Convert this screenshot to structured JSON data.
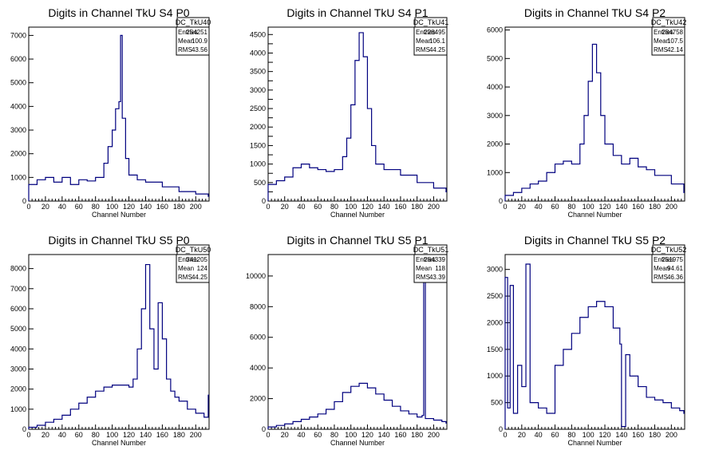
{
  "colors": {
    "histogram": "#00007f",
    "frame": "#000000",
    "background": "#ffffff"
  },
  "chart_data": [
    {
      "type": "histogram",
      "title": "Digits in Channel TkU S4 P0",
      "xlabel": "Channel Number",
      "ylabel": "",
      "xlim": [
        0,
        216
      ],
      "ylim": [
        0,
        7350
      ],
      "xticks": [
        0,
        20,
        40,
        60,
        80,
        100,
        120,
        140,
        160,
        180,
        200
      ],
      "yticks": [
        1000,
        2000,
        3000,
        4000,
        5000,
        6000,
        7000
      ],
      "stats": {
        "name": "DC_TkU40",
        "rows": [
          [
            "Entries",
            "254251"
          ],
          [
            "Mean",
            "100.9"
          ],
          [
            "RMS",
            "43.56"
          ]
        ]
      },
      "x": [
        0,
        10,
        20,
        30,
        40,
        50,
        60,
        70,
        80,
        90,
        95,
        100,
        104,
        108,
        110,
        112,
        116,
        120,
        130,
        140,
        160,
        180,
        200,
        215
      ],
      "values": [
        700,
        900,
        1000,
        800,
        1000,
        700,
        900,
        850,
        1000,
        1600,
        2300,
        3000,
        3900,
        4200,
        7000,
        3500,
        1800,
        1100,
        900,
        800,
        600,
        400,
        300,
        200
      ]
    },
    {
      "type": "histogram",
      "title": "Digits in Channel TkU S4 P1",
      "xlabel": "Channel Number",
      "ylabel": "",
      "xlim": [
        0,
        216
      ],
      "ylim": [
        0,
        4700
      ],
      "xticks": [
        0,
        20,
        40,
        60,
        80,
        100,
        120,
        140,
        160,
        180,
        200
      ],
      "yticks": [
        250,
        500,
        750,
        1000,
        1250,
        1500,
        1750,
        2000,
        2250,
        2500,
        2750,
        3000,
        3250,
        3500,
        3750,
        4000,
        4250,
        4500
      ],
      "ytick_labels": [
        "",
        "500",
        "",
        "1000",
        "",
        "1500",
        "",
        "2000",
        "",
        "2500",
        "",
        "3000",
        "",
        "3500",
        "",
        "4000",
        "",
        "4500"
      ],
      "stats": {
        "name": "DC_TkU41",
        "rows": [
          [
            "Entries",
            "228495"
          ],
          [
            "Mean",
            "106.1"
          ],
          [
            "RMS",
            "44.25"
          ]
        ]
      },
      "x": [
        0,
        10,
        20,
        30,
        40,
        50,
        60,
        70,
        80,
        90,
        95,
        100,
        105,
        110,
        115,
        120,
        125,
        130,
        140,
        160,
        180,
        200,
        215
      ],
      "values": [
        450,
        550,
        650,
        900,
        1000,
        900,
        850,
        800,
        850,
        1200,
        1700,
        2600,
        3800,
        4550,
        3900,
        2500,
        1500,
        1000,
        850,
        700,
        500,
        350,
        250
      ]
    },
    {
      "type": "histogram",
      "title": "Digits in Channel TkU S4 P2",
      "xlabel": "Channel Number",
      "ylabel": "",
      "xlim": [
        0,
        216
      ],
      "ylim": [
        0,
        6100
      ],
      "xticks": [
        0,
        20,
        40,
        60,
        80,
        100,
        120,
        140,
        160,
        180,
        200
      ],
      "yticks": [
        1000,
        2000,
        3000,
        4000,
        5000,
        6000
      ],
      "stats": {
        "name": "DC_TkU42",
        "rows": [
          [
            "Entries",
            "284758"
          ],
          [
            "Mean",
            "107.5"
          ],
          [
            "RMS",
            "42.14"
          ]
        ]
      },
      "x": [
        0,
        10,
        20,
        30,
        40,
        50,
        60,
        70,
        80,
        90,
        95,
        100,
        105,
        110,
        115,
        120,
        130,
        140,
        150,
        160,
        170,
        180,
        200,
        215
      ],
      "values": [
        200,
        300,
        450,
        600,
        700,
        1000,
        1300,
        1400,
        1300,
        2000,
        3000,
        4200,
        5500,
        4500,
        3000,
        2000,
        1600,
        1300,
        1500,
        1200,
        1100,
        900,
        600,
        300
      ]
    },
    {
      "type": "histogram",
      "title": "Digits in Channel TkU S5 P0",
      "xlabel": "Channel Number",
      "ylabel": "",
      "xlim": [
        0,
        216
      ],
      "ylim": [
        0,
        8700
      ],
      "xticks": [
        0,
        20,
        40,
        60,
        80,
        100,
        120,
        140,
        160,
        180,
        200
      ],
      "yticks": [
        1000,
        2000,
        3000,
        4000,
        5000,
        6000,
        7000,
        8000
      ],
      "stats": {
        "name": "DC_TkU50",
        "rows": [
          [
            "Entries",
            "341205"
          ],
          [
            "Mean",
            "124"
          ],
          [
            "RMS",
            "44.25"
          ]
        ]
      },
      "x": [
        0,
        10,
        20,
        30,
        40,
        50,
        60,
        70,
        80,
        90,
        100,
        110,
        120,
        125,
        130,
        135,
        140,
        145,
        150,
        155,
        160,
        165,
        170,
        175,
        180,
        190,
        200,
        210,
        215
      ],
      "values": [
        100,
        200,
        350,
        500,
        700,
        1000,
        1300,
        1600,
        1900,
        2100,
        2200,
        2200,
        2100,
        2500,
        4000,
        6000,
        8200,
        5000,
        3000,
        6300,
        4500,
        2500,
        1900,
        1600,
        1400,
        1000,
        800,
        600,
        1700
      ]
    },
    {
      "type": "histogram",
      "title": "Digits in Channel TkU S5 P1",
      "xlabel": "Channel Number",
      "ylabel": "",
      "xlim": [
        0,
        216
      ],
      "ylim": [
        0,
        11400
      ],
      "xticks": [
        0,
        20,
        40,
        60,
        80,
        100,
        120,
        140,
        160,
        180,
        200
      ],
      "yticks": [
        2000,
        4000,
        6000,
        8000,
        10000
      ],
      "stats": {
        "name": "DC_TkU51",
        "rows": [
          [
            "Entries",
            "264339"
          ],
          [
            "Mean",
            "118"
          ],
          [
            "RMS",
            "43.39"
          ]
        ]
      },
      "x": [
        0,
        10,
        20,
        30,
        40,
        50,
        60,
        70,
        80,
        90,
        100,
        110,
        120,
        130,
        140,
        150,
        160,
        170,
        180,
        186,
        188,
        190,
        200,
        210,
        215
      ],
      "values": [
        150,
        250,
        350,
        500,
        650,
        800,
        1000,
        1300,
        1800,
        2400,
        2800,
        3000,
        2700,
        2300,
        1900,
        1500,
        1200,
        1000,
        800,
        900,
        10800,
        700,
        600,
        500,
        400
      ]
    },
    {
      "type": "histogram",
      "title": "Digits in Channel TkU S5 P2",
      "xlabel": "Channel Number",
      "ylabel": "",
      "xlim": [
        0,
        216
      ],
      "ylim": [
        0,
        3280
      ],
      "xticks": [
        0,
        20,
        40,
        60,
        80,
        100,
        120,
        140,
        160,
        180,
        200
      ],
      "yticks": [
        500,
        1000,
        1500,
        2000,
        2500,
        3000
      ],
      "stats": {
        "name": "DC_TkU52",
        "rows": [
          [
            "Entries",
            "251975"
          ],
          [
            "Mean",
            "94.61"
          ],
          [
            "RMS",
            "46.36"
          ]
        ]
      },
      "x": [
        0,
        3,
        6,
        10,
        15,
        20,
        25,
        30,
        40,
        50,
        60,
        70,
        80,
        90,
        100,
        110,
        120,
        130,
        138,
        140,
        145,
        150,
        160,
        170,
        180,
        190,
        200,
        210,
        215
      ],
      "values": [
        2850,
        400,
        2700,
        300,
        1200,
        800,
        3100,
        500,
        400,
        300,
        1200,
        1500,
        1800,
        2100,
        2300,
        2400,
        2300,
        1900,
        1600,
        50,
        1400,
        1000,
        800,
        600,
        550,
        500,
        400,
        350,
        300
      ]
    }
  ]
}
